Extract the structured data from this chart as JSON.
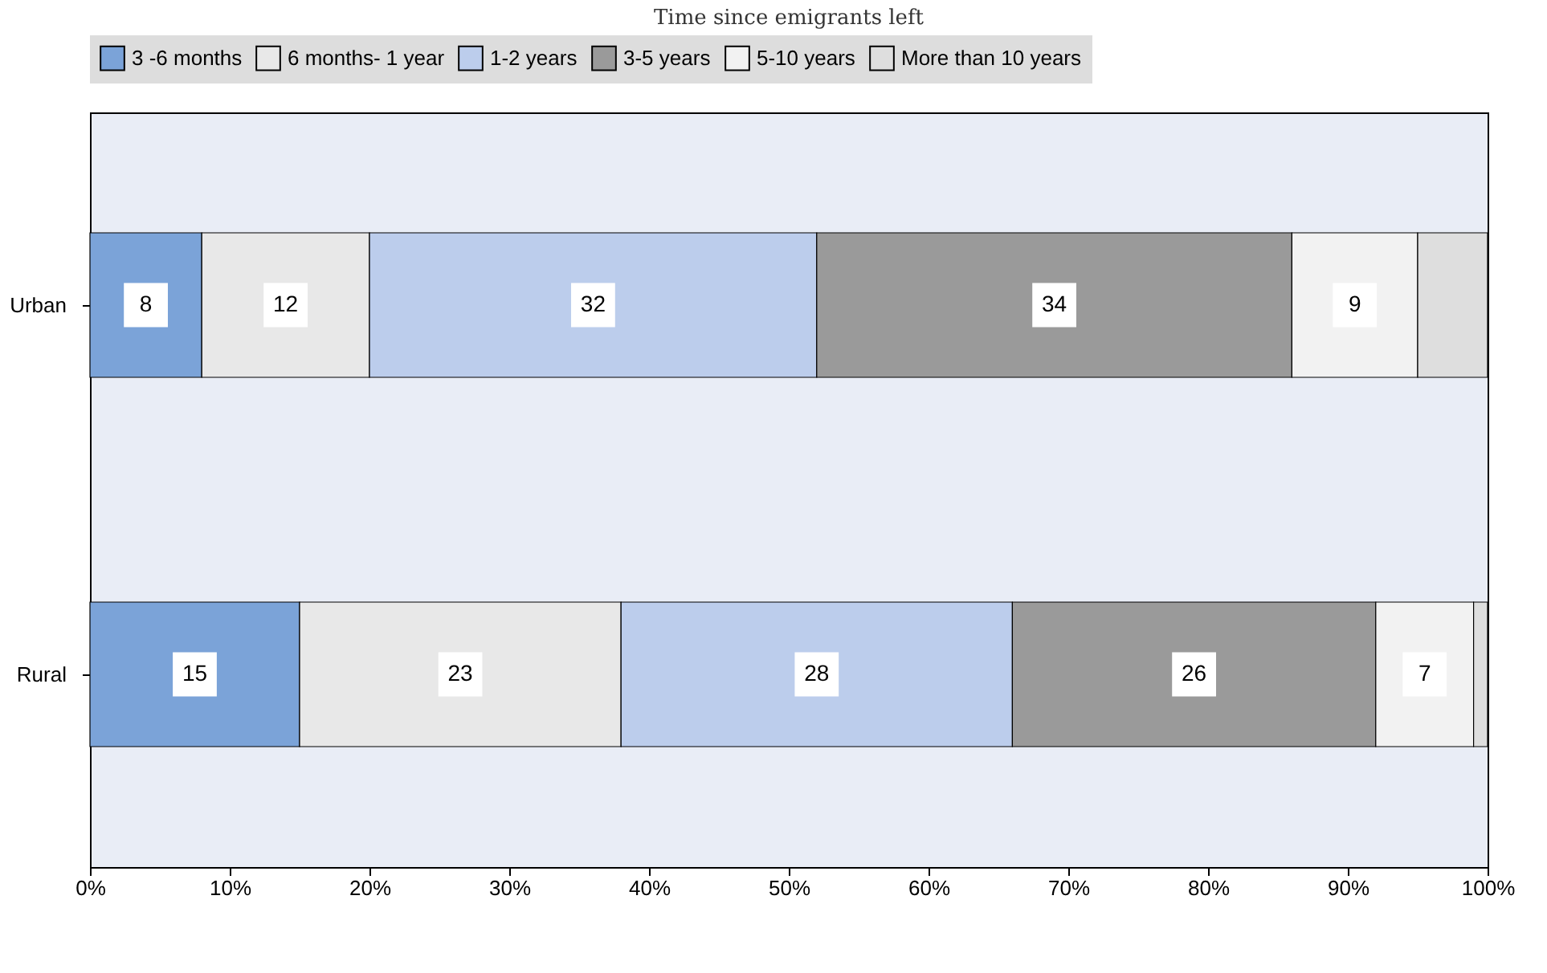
{
  "chart_data": {
    "type": "bar",
    "orientation": "horizontal",
    "stacked": true,
    "title": "Time since emigrants left",
    "categories": [
      "Urban",
      "Rural"
    ],
    "series": [
      {
        "name": "3 -6 months",
        "color": "#7ba3d8",
        "values": [
          8,
          15
        ],
        "value_labels": [
          "8",
          "15"
        ]
      },
      {
        "name": "6 months- 1 year",
        "color": "#e8e8e8",
        "values": [
          12,
          23
        ],
        "value_labels": [
          "12",
          "23"
        ]
      },
      {
        "name": "1-2 years",
        "color": "#bccdec",
        "values": [
          32,
          28
        ],
        "value_labels": [
          "32",
          "28"
        ]
      },
      {
        "name": "3-5 years",
        "color": "#9a9a9a",
        "values": [
          34,
          26
        ],
        "value_labels": [
          "34",
          "26"
        ]
      },
      {
        "name": "5-10 years",
        "color": "#f2f2f2",
        "values": [
          9,
          7
        ],
        "value_labels": [
          "9",
          "7"
        ]
      },
      {
        "name": "More than 10 years",
        "color": "#dedede",
        "values": [
          5,
          1
        ],
        "value_labels": [
          null,
          null
        ]
      }
    ],
    "xlim": [
      0,
      100
    ],
    "xticks": [
      {
        "value": 0,
        "label": "0%"
      },
      {
        "value": 10,
        "label": "10%"
      },
      {
        "value": 20,
        "label": "20%"
      },
      {
        "value": 30,
        "label": "30%"
      },
      {
        "value": 40,
        "label": "40%"
      },
      {
        "value": 50,
        "label": "50%"
      },
      {
        "value": 60,
        "label": "60%"
      },
      {
        "value": 70,
        "label": "70%"
      },
      {
        "value": 80,
        "label": "80%"
      },
      {
        "value": 90,
        "label": "90%"
      },
      {
        "value": 100,
        "label": "100%"
      }
    ],
    "grid": false,
    "legend": "top"
  }
}
